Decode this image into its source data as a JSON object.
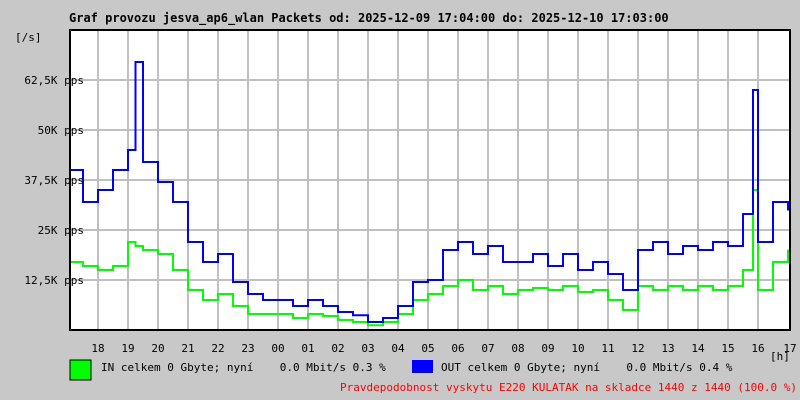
{
  "chart_data": {
    "type": "line",
    "title": "Graf provozu jesva_ap6_wlan Packets od: 2025-12-09 17:04:00 do: 2025-12-10 17:03:00",
    "ylabel": "[/s]",
    "xlabel": "[h]",
    "ylim": [
      0,
      75000
    ],
    "y_ticks": [
      {
        "value": 12500,
        "label": "12,5K pps"
      },
      {
        "value": 25000,
        "label": "25K pps"
      },
      {
        "value": 37500,
        "label": "37,5K pps"
      },
      {
        "value": 50000,
        "label": "50K pps"
      },
      {
        "value": 62500,
        "label": "62,5K pps"
      }
    ],
    "x_range": [
      "17:04",
      "17:03"
    ],
    "x_ticks": [
      "18",
      "19",
      "20",
      "21",
      "22",
      "23",
      "00",
      "01",
      "02",
      "03",
      "04",
      "05",
      "06",
      "07",
      "08",
      "09",
      "10",
      "11",
      "12",
      "13",
      "14",
      "15",
      "16",
      "17"
    ],
    "grid": true,
    "x": [
      "17:04",
      "17:30",
      "18:00",
      "18:30",
      "19:00",
      "19:15",
      "19:30",
      "20:00",
      "20:30",
      "21:00",
      "21:30",
      "22:00",
      "22:30",
      "23:00",
      "23:30",
      "00:00",
      "00:30",
      "01:00",
      "01:30",
      "02:00",
      "02:30",
      "03:00",
      "03:30",
      "04:00",
      "04:30",
      "05:00",
      "05:30",
      "06:00",
      "06:30",
      "07:00",
      "07:30",
      "08:00",
      "08:30",
      "09:00",
      "09:30",
      "10:00",
      "10:30",
      "11:00",
      "11:30",
      "12:00",
      "12:30",
      "13:00",
      "13:30",
      "14:00",
      "14:30",
      "15:00",
      "15:30",
      "15:50",
      "16:00",
      "16:30",
      "17:00"
    ],
    "series": [
      {
        "name": "IN",
        "color": "#00ff00",
        "values": [
          17000,
          16000,
          15000,
          16000,
          22000,
          21000,
          20000,
          19000,
          15000,
          10000,
          7500,
          9000,
          6000,
          4000,
          4000,
          4000,
          3000,
          4000,
          3500,
          2500,
          2000,
          1200,
          2000,
          4000,
          7500,
          9000,
          11000,
          12500,
          10000,
          11000,
          9000,
          10000,
          10500,
          10000,
          11000,
          9500,
          10000,
          7500,
          5000,
          11000,
          10000,
          11000,
          10000,
          11000,
          10000,
          11000,
          15000,
          35000,
          10000,
          17000,
          20000
        ]
      },
      {
        "name": "OUT",
        "color": "#0000ff",
        "values": [
          40000,
          32000,
          35000,
          40000,
          45000,
          67000,
          42000,
          37000,
          32000,
          22000,
          17000,
          19000,
          12000,
          9000,
          7500,
          7500,
          6000,
          7500,
          6000,
          4500,
          3700,
          2000,
          3000,
          6000,
          12000,
          12500,
          20000,
          22000,
          19000,
          21000,
          17000,
          17000,
          19000,
          16000,
          19000,
          15000,
          17000,
          14000,
          10000,
          20000,
          22000,
          19000,
          21000,
          20000,
          22000,
          21000,
          29000,
          60000,
          22000,
          32000,
          30000
        ]
      }
    ]
  },
  "legend": {
    "in_text": "IN celkem 0 Gbyte; nyní    0.0 Mbit/s 0.3 %",
    "out_text": "OUT celkem 0 Gbyte; nyní    0.0 Mbit/s 0.4 %",
    "in_color": "#00ff00",
    "out_color": "#0000ff"
  },
  "footer_note": "Pravdepodobnost vyskytu E220 KULATAK na skladce 1440 z 1440 (100.0 %)"
}
